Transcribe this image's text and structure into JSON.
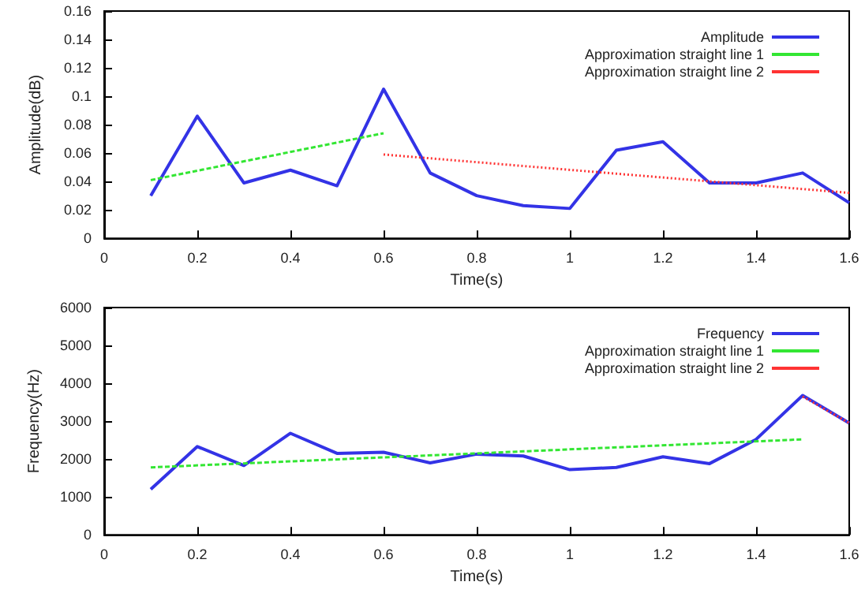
{
  "chart_data": [
    {
      "type": "line",
      "xlabel": "Time(s)",
      "ylabel": "Amplitude(dB)",
      "xlim": [
        0,
        1.6
      ],
      "xticks": [
        0,
        0.2,
        0.4,
        0.6,
        0.8,
        1,
        1.2,
        1.4,
        1.6
      ],
      "ylim": [
        0,
        0.16
      ],
      "yticks": [
        0,
        0.02,
        0.04,
        0.06,
        0.08,
        0.1,
        0.12,
        0.14,
        0.16
      ],
      "grid": false,
      "legend": "top right",
      "marker": "none",
      "series": [
        {
          "name": "Amplitude",
          "color": "#3333e6",
          "line_style": "solid",
          "x": [
            0.1,
            0.2,
            0.3,
            0.4,
            0.5,
            0.6,
            0.7,
            0.8,
            0.9,
            1.0,
            1.1,
            1.2,
            1.3,
            1.4,
            1.5,
            1.6
          ],
          "values": [
            0.03,
            0.086,
            0.039,
            0.048,
            0.037,
            0.105,
            0.046,
            0.03,
            0.023,
            0.021,
            0.062,
            0.068,
            0.039,
            0.039,
            0.046,
            0.025
          ]
        },
        {
          "name": "Approximation straight line 1",
          "color": "#33e633",
          "line_style": "dashed",
          "x": [
            0.1,
            0.6
          ],
          "values": [
            0.041,
            0.074
          ]
        },
        {
          "name": "Approximation straight line 2",
          "color": "#ff3333",
          "line_style": "dotted",
          "x": [
            0.6,
            1.6
          ],
          "values": [
            0.059,
            0.032
          ]
        }
      ]
    },
    {
      "type": "line",
      "xlabel": "Time(s)",
      "ylabel": "Frequency(Hz)",
      "xlim": [
        0,
        1.6
      ],
      "xticks": [
        0,
        0.2,
        0.4,
        0.6,
        0.8,
        1,
        1.2,
        1.4,
        1.6
      ],
      "ylim": [
        0,
        6000
      ],
      "yticks": [
        0,
        1000,
        2000,
        3000,
        4000,
        5000,
        6000
      ],
      "grid": false,
      "legend": "top right",
      "marker": "none",
      "series": [
        {
          "name": "Frequency",
          "color": "#3333e6",
          "line_style": "solid",
          "x": [
            0.1,
            0.2,
            0.3,
            0.4,
            0.5,
            0.6,
            0.7,
            0.8,
            0.9,
            1.0,
            1.1,
            1.2,
            1.3,
            1.4,
            1.5,
            1.6
          ],
          "values": [
            1200,
            2330,
            1830,
            2680,
            2150,
            2180,
            1900,
            2130,
            2080,
            1720,
            1780,
            2060,
            1880,
            2520,
            3680,
            2950
          ]
        },
        {
          "name": "Approximation straight line 1",
          "color": "#33e633",
          "line_style": "dashed",
          "x": [
            0.1,
            1.5
          ],
          "values": [
            1780,
            2520
          ]
        },
        {
          "name": "Approximation straight line 2",
          "color": "#ff3333",
          "line_style": "dotted",
          "x": [
            1.5,
            1.6
          ],
          "values": [
            3650,
            2950
          ]
        }
      ]
    }
  ]
}
